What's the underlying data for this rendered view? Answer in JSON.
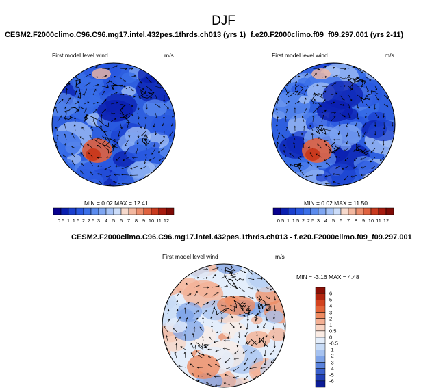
{
  "figure": {
    "title": "DJF"
  },
  "panels": [
    {
      "case": "CESM2.F2000climo.C96.C96.mg17.intel.432pes.1thrds.ch013 (yrs 1)",
      "field": "First model level wind",
      "units": "m/s",
      "min": "0.02",
      "max": "12.41",
      "stats_text": "MIN =  0.02 MAX =  12.41"
    },
    {
      "case": "f.e20.F2000climo.f09_f09.297.001 (yrs 2-11)",
      "field": "First model level wind",
      "units": "m/s",
      "min": "0.02",
      "max": "11.50",
      "stats_text": "MIN =  0.02 MAX =  11.50"
    },
    {
      "case": "CESM2.F2000climo.C96.C96.mg17.intel.432pes.1thrds.ch013 - f.e20.F2000climo.f09_f09.297.001",
      "field": "First model level wind",
      "units": "m/s",
      "min": "-3.16",
      "max": "4.48",
      "stats_text": "MIN = -3.16 MAX =  4.48"
    }
  ],
  "colorbar_abs": {
    "labels": [
      "0.5",
      "1",
      "1.5",
      "2",
      "2.5",
      "3",
      "4",
      "5",
      "6",
      "7",
      "8",
      "9",
      "10",
      "11",
      "12"
    ],
    "colors": [
      "#08008f",
      "#0a1fb0",
      "#1a3fcf",
      "#2857e0",
      "#3a6fe8",
      "#5b8bee",
      "#7fa6f2",
      "#a6c2f6",
      "#cbdcf9",
      "#f6d9cc",
      "#f3b8a0",
      "#ec8f6e",
      "#e0623f",
      "#c93a1e",
      "#a71a0e",
      "#7f0a05"
    ]
  },
  "colorbar_diff": {
    "labels": [
      "6",
      "5",
      "4",
      "3",
      "2",
      "1",
      "0.5",
      "0",
      "-0.5",
      "-1",
      "-2",
      "-3",
      "-4",
      "-5",
      "-6"
    ],
    "colors": [
      "#8a0f06",
      "#b2250f",
      "#d2431f",
      "#e36439",
      "#ee8b61",
      "#f4b094",
      "#f8d4c3",
      "#fbece4",
      "#e4eefb",
      "#c7dbf6",
      "#a6c2f0",
      "#7fa4e8",
      "#5a83dc",
      "#3a60cc",
      "#2140b6",
      "#0c1c96"
    ]
  },
  "map_layer": {
    "projection": "north polar stereographic",
    "coastlines": true,
    "vectors": true
  }
}
